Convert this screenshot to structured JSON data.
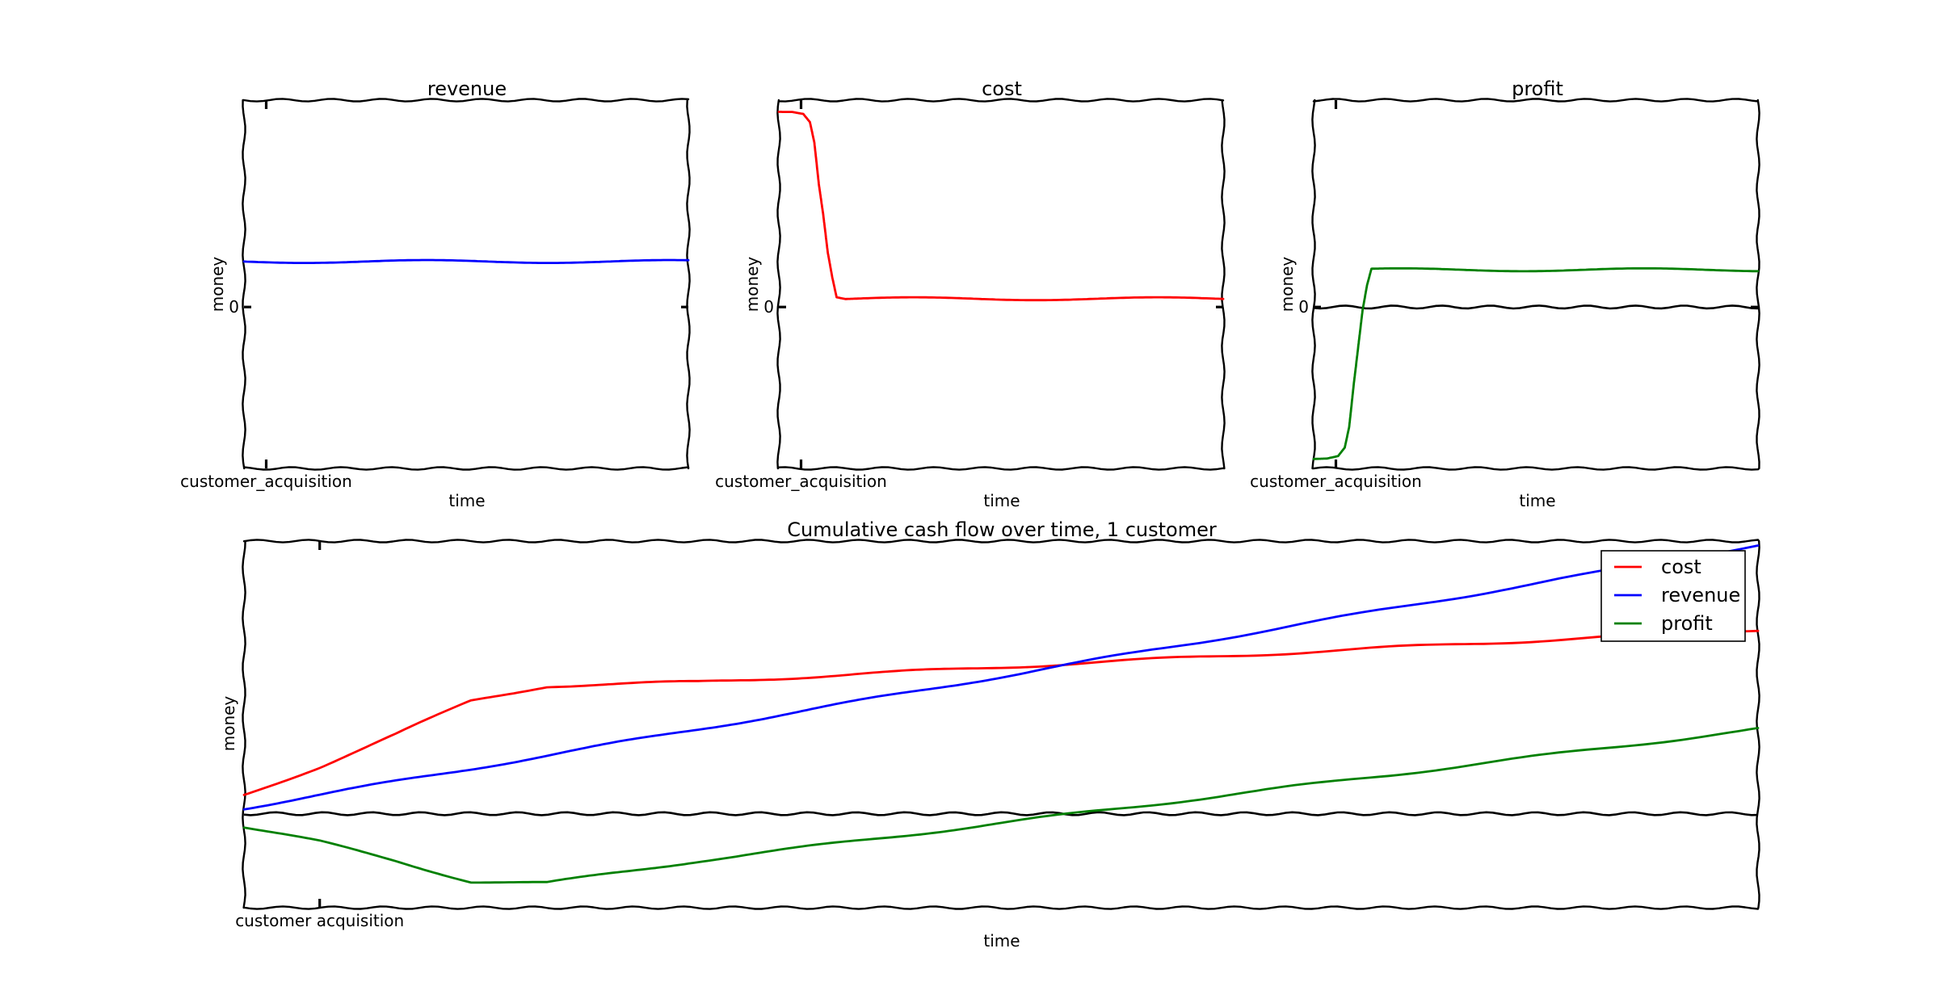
{
  "chart_data": [
    {
      "id": "revenue",
      "type": "line",
      "title": "revenue",
      "xlabel": "time",
      "ylabel": "money",
      "x": [
        0,
        1,
        2,
        3,
        4,
        5,
        6,
        7,
        8,
        9,
        10
      ],
      "series": [
        {
          "color": "#0000ff",
          "values": [
            0.22,
            0.22,
            0.22,
            0.22,
            0.22,
            0.22,
            0.22,
            0.22,
            0.22,
            0.22,
            0.22
          ]
        }
      ],
      "ylim": [
        -0.78,
        1.0
      ],
      "xlim": [
        0,
        10
      ],
      "yticks": [
        {
          "value": 0,
          "label": "0"
        }
      ],
      "xticks": [
        {
          "value": 0.5,
          "label": "customer_acquisition"
        }
      ],
      "zero_line": false,
      "grid": false
    },
    {
      "id": "cost",
      "type": "line",
      "title": "cost",
      "xlabel": "time",
      "ylabel": "money",
      "x": [
        0,
        0.3,
        0.55,
        0.7,
        0.8,
        0.9,
        1.0,
        1.1,
        1.2,
        1.3,
        1.5,
        2,
        3,
        4,
        5,
        6,
        7,
        8,
        9,
        10
      ],
      "series": [
        {
          "color": "#ff0000",
          "values": [
            0.95,
            0.95,
            0.94,
            0.9,
            0.8,
            0.6,
            0.45,
            0.27,
            0.15,
            0.05,
            0.04,
            0.04,
            0.04,
            0.04,
            0.04,
            0.04,
            0.04,
            0.04,
            0.04,
            0.04
          ]
        }
      ],
      "ylim": [
        -0.78,
        1.0
      ],
      "xlim": [
        0,
        10
      ],
      "yticks": [
        {
          "value": 0,
          "label": "0"
        }
      ],
      "xticks": [
        {
          "value": 0.5,
          "label": "customer_acquisition"
        }
      ],
      "zero_line": false,
      "grid": false
    },
    {
      "id": "profit",
      "type": "line",
      "title": "profit",
      "xlabel": "time",
      "ylabel": "money",
      "x": [
        0,
        0.3,
        0.55,
        0.7,
        0.8,
        0.9,
        1.0,
        1.1,
        1.2,
        1.3,
        1.5,
        2,
        3,
        4,
        5,
        6,
        7,
        8,
        9,
        10
      ],
      "series": [
        {
          "color": "#008000",
          "values": [
            -0.73,
            -0.73,
            -0.72,
            -0.68,
            -0.58,
            -0.38,
            -0.2,
            -0.02,
            0.1,
            0.18,
            0.18,
            0.18,
            0.18,
            0.18,
            0.18,
            0.18,
            0.18,
            0.18,
            0.18,
            0.18
          ]
        }
      ],
      "ylim": [
        -0.78,
        1.0
      ],
      "xlim": [
        0,
        10
      ],
      "yticks": [
        {
          "value": 0,
          "label": "0"
        }
      ],
      "xticks": [
        {
          "value": 0.5,
          "label": "customer_acquisition"
        }
      ],
      "zero_line": true,
      "grid": false
    },
    {
      "id": "cumulative",
      "type": "line",
      "title": "Cumulative cash flow over time, 1 customer",
      "xlabel": "time",
      "ylabel": "money",
      "x": [
        0,
        0.5,
        1,
        1.5,
        2,
        2.5,
        3,
        3.5,
        4,
        4.5,
        5,
        6,
        7,
        8,
        9,
        10
      ],
      "series": [
        {
          "name": "cost",
          "color": "#ff0000",
          "values": [
            0.1,
            0.25,
            0.42,
            0.6,
            0.68,
            0.69,
            0.7,
            0.72,
            0.74,
            0.76,
            0.78,
            0.82,
            0.86,
            0.9,
            0.94,
            0.98
          ]
        },
        {
          "name": "revenue",
          "color": "#0000ff",
          "values": [
            0.03,
            0.1,
            0.17,
            0.24,
            0.31,
            0.38,
            0.45,
            0.52,
            0.59,
            0.66,
            0.73,
            0.87,
            1.01,
            1.15,
            1.29,
            1.43
          ]
        },
        {
          "name": "profit",
          "color": "#008000",
          "values": [
            -0.07,
            -0.15,
            -0.25,
            -0.36,
            -0.37,
            -0.31,
            -0.25,
            -0.2,
            -0.15,
            -0.1,
            -0.05,
            0.05,
            0.15,
            0.25,
            0.35,
            0.45
          ]
        }
      ],
      "ylim": [
        -0.5,
        1.45
      ],
      "xlim": [
        0,
        10
      ],
      "yticks": [],
      "xticks": [
        {
          "value": 0.5,
          "label": "customer acquisition"
        }
      ],
      "zero_line": true,
      "grid": false,
      "legend": {
        "placement": "top-right",
        "entries": [
          "cost",
          "revenue",
          "profit"
        ]
      }
    }
  ]
}
